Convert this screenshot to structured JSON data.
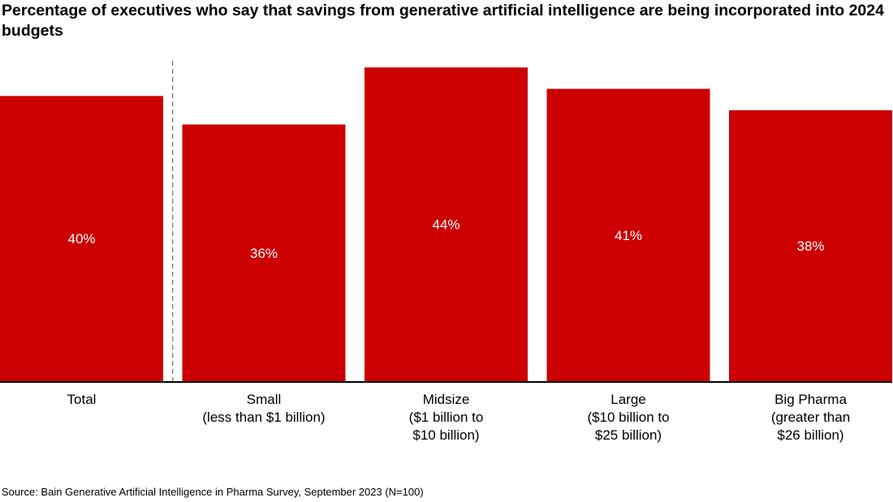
{
  "chart_data": {
    "type": "bar",
    "title": "Percentage of executives who say that savings from generative artificial intelligence are being incorporated into 2024 budgets",
    "categories": [
      [
        "Total"
      ],
      [
        "Small",
        "(less than $1 billion)"
      ],
      [
        "Midsize",
        "($1 billion to",
        "$10 billion)"
      ],
      [
        "Large",
        "($10 billion to",
        "$25 billion)"
      ],
      [
        "Big Pharma",
        "(greater than",
        "$26 billion)"
      ]
    ],
    "values": [
      40,
      36,
      44,
      41,
      38
    ],
    "value_labels": [
      "40%",
      "36%",
      "44%",
      "41%",
      "38%"
    ],
    "unit": "%",
    "ylim": [
      0,
      48
    ],
    "grid": false,
    "divider_after_index": 0,
    "bar_color": "#cc0000",
    "source": "Source: Bain Generative Artificial Intelligence in Pharma Survey, September 2023 (N=100)"
  }
}
